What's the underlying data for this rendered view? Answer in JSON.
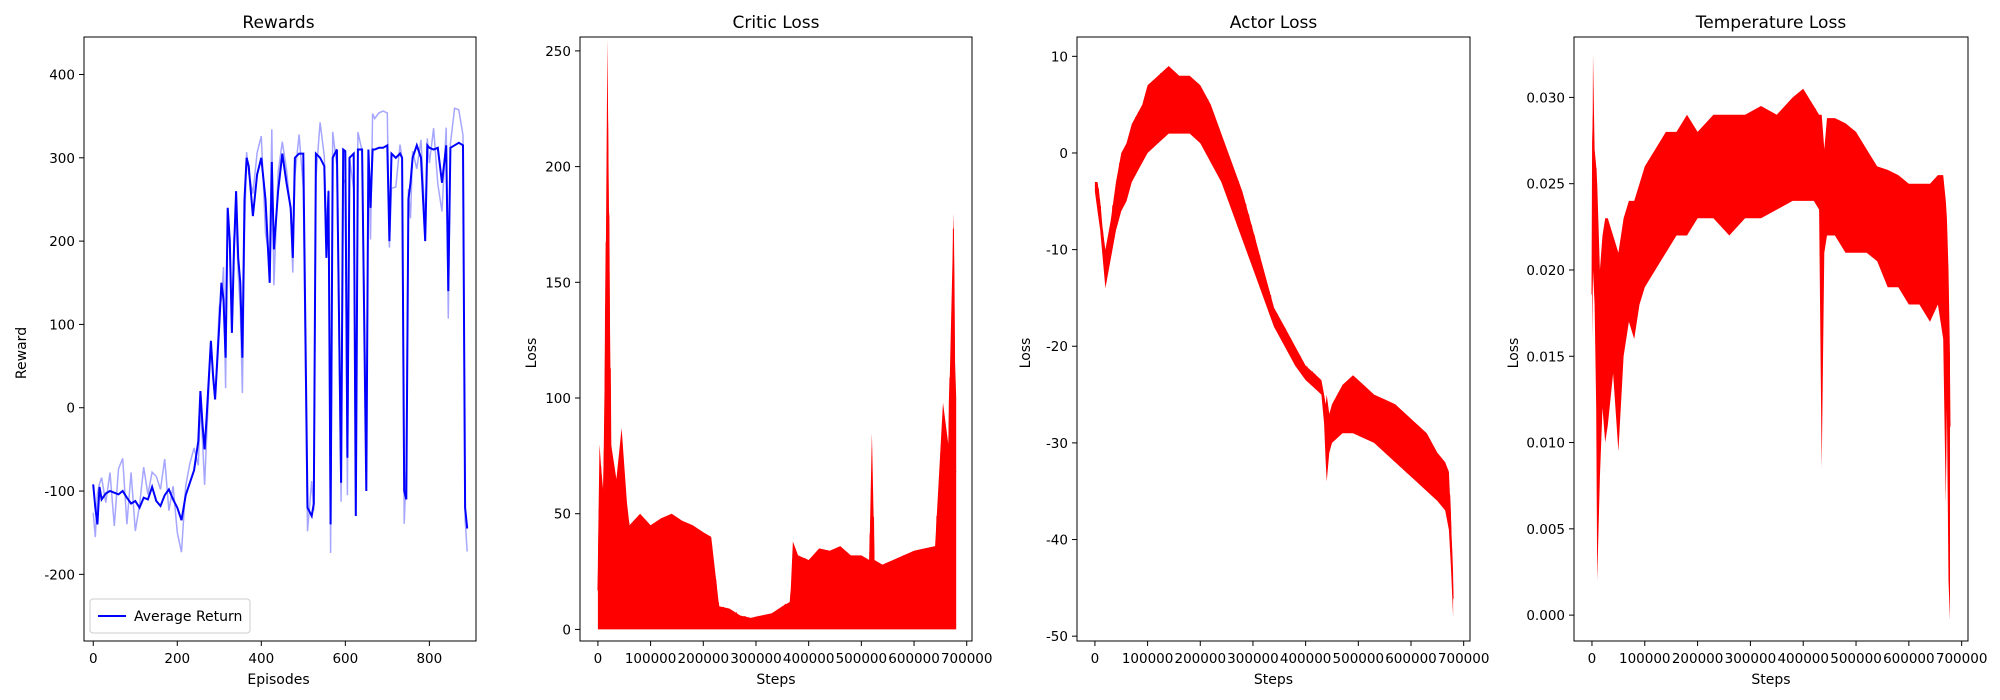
{
  "chart_data": [
    {
      "type": "line",
      "title": "Rewards",
      "xlabel": "Episodes",
      "ylabel": "Reward",
      "xlim": [
        -22,
        911
      ],
      "ylim": [
        -280,
        445
      ],
      "xticks": [
        0,
        200,
        400,
        600,
        800
      ],
      "yticks": [
        -200,
        -100,
        0,
        100,
        200,
        300,
        400
      ],
      "legend": {
        "position": "lower-left",
        "entries": [
          "Average Return"
        ]
      },
      "colors": {
        "line": "#0000ff",
        "band": "#0000ff",
        "band_opacity": 0.35
      },
      "series": [
        {
          "name": "Average Return",
          "x": [
            0,
            5,
            10,
            15,
            20,
            30,
            40,
            50,
            60,
            70,
            80,
            90,
            100,
            110,
            120,
            130,
            140,
            150,
            160,
            170,
            180,
            190,
            200,
            210,
            220,
            230,
            240,
            250,
            255,
            260,
            265,
            270,
            280,
            285,
            290,
            300,
            305,
            310,
            315,
            320,
            325,
            330,
            335,
            340,
            345,
            350,
            355,
            360,
            365,
            370,
            380,
            390,
            400,
            410,
            420,
            425,
            430,
            440,
            450,
            460,
            470,
            475,
            480,
            490,
            500,
            510,
            520,
            525,
            530,
            540,
            550,
            555,
            560,
            565,
            570,
            580,
            590,
            595,
            600,
            605,
            610,
            620,
            625,
            630,
            640,
            650,
            655,
            660,
            665,
            670,
            680,
            690,
            700,
            705,
            710,
            720,
            730,
            735,
            740,
            745,
            750,
            755,
            760,
            770,
            780,
            790,
            795,
            800,
            810,
            820,
            830,
            840,
            845,
            850,
            860,
            870,
            880,
            885,
            890
          ],
          "y": [
            -92,
            -120,
            -140,
            -95,
            -110,
            -103,
            -100,
            -102,
            -104,
            -100,
            -108,
            -115,
            -112,
            -120,
            -108,
            -110,
            -95,
            -112,
            -118,
            -105,
            -98,
            -110,
            -120,
            -135,
            -105,
            -90,
            -75,
            -40,
            20,
            -20,
            -50,
            -10,
            80,
            40,
            10,
            100,
            150,
            130,
            60,
            240,
            200,
            90,
            190,
            260,
            180,
            150,
            60,
            250,
            300,
            290,
            230,
            280,
            300,
            250,
            150,
            295,
            190,
            260,
            305,
            270,
            240,
            180,
            300,
            305,
            305,
            -120,
            -130,
            -115,
            305,
            300,
            290,
            180,
            260,
            -140,
            300,
            310,
            -90,
            310,
            308,
            -60,
            300,
            305,
            -130,
            310,
            310,
            -100,
            310,
            240,
            310,
            310,
            312,
            312,
            315,
            200,
            305,
            300,
            305,
            300,
            -100,
            -110,
            250,
            270,
            300,
            315,
            300,
            200,
            315,
            312,
            310,
            312,
            270,
            315,
            140,
            312,
            315,
            318,
            315,
            -120,
            -145
          ]
        }
      ]
    },
    {
      "type": "line",
      "title": "Critic Loss",
      "xlabel": "Steps",
      "ylabel": "Loss",
      "xlim": [
        -34000,
        710000
      ],
      "ylim": [
        -5,
        256
      ],
      "xticks": [
        0,
        100000,
        200000,
        300000,
        400000,
        500000,
        600000,
        700000
      ],
      "yticks": [
        0,
        50,
        100,
        150,
        200,
        250
      ],
      "colors": {
        "line": "#ff0000"
      },
      "envelope": {
        "x": [
          0,
          3000,
          6000,
          10000,
          14000,
          18000,
          25000,
          35000,
          45000,
          55000,
          60000,
          80000,
          100000,
          120000,
          140000,
          160000,
          180000,
          200000,
          215000,
          230000,
          250000,
          270000,
          290000,
          310000,
          330000,
          350000,
          365000,
          370000,
          380000,
          400000,
          420000,
          440000,
          460000,
          480000,
          500000,
          515000,
          520000,
          525000,
          540000,
          560000,
          580000,
          600000,
          620000,
          640000,
          655000,
          665000,
          670000,
          675000,
          678000,
          680000
        ],
        "upper": [
          30,
          80,
          70,
          60,
          130,
          255,
          80,
          65,
          87,
          55,
          45,
          50,
          45,
          48,
          50,
          47,
          45,
          42,
          40,
          10,
          9,
          6,
          5,
          6,
          7,
          10,
          12,
          38,
          32,
          30,
          35,
          34,
          36,
          32,
          32,
          30,
          85,
          30,
          28,
          30,
          32,
          34,
          35,
          36,
          98,
          80,
          130,
          180,
          115,
          100
        ],
        "lower": [
          0,
          0,
          0,
          0,
          0,
          0,
          0,
          0,
          0,
          0,
          0,
          0,
          0,
          0,
          0,
          0,
          0,
          0,
          0,
          0,
          0,
          0,
          0,
          0,
          0,
          0,
          0,
          0,
          0,
          0,
          0,
          0,
          0,
          0,
          0,
          0,
          0,
          0,
          0,
          0,
          0,
          0,
          0,
          0,
          0,
          0,
          0,
          0,
          0,
          0
        ]
      }
    },
    {
      "type": "line",
      "title": "Actor Loss",
      "xlabel": "Steps",
      "ylabel": "Loss",
      "xlim": [
        -34000,
        712000
      ],
      "ylim": [
        -50.5,
        12
      ],
      "xticks": [
        0,
        100000,
        200000,
        300000,
        400000,
        500000,
        600000,
        700000
      ],
      "yticks": [
        -50,
        -40,
        -30,
        -20,
        -10,
        0,
        10
      ],
      "colors": {
        "line": "#ff0000"
      },
      "envelope": {
        "x": [
          0,
          5000,
          10000,
          15000,
          20000,
          30000,
          40000,
          50000,
          60000,
          70000,
          80000,
          90000,
          100000,
          120000,
          140000,
          160000,
          180000,
          200000,
          220000,
          240000,
          260000,
          280000,
          300000,
          320000,
          340000,
          360000,
          380000,
          400000,
          420000,
          430000,
          435000,
          438000,
          440000,
          445000,
          450000,
          470000,
          490000,
          510000,
          530000,
          550000,
          570000,
          590000,
          610000,
          630000,
          650000,
          665000,
          672000,
          676000,
          680000
        ],
        "upper": [
          -3,
          -3,
          -5,
          -8,
          -10,
          -7,
          -3,
          0,
          1,
          3,
          4,
          5,
          7,
          8,
          9,
          8,
          8,
          7,
          5,
          2,
          -1,
          -4,
          -8,
          -12,
          -16,
          -18,
          -20,
          -22,
          -23,
          -23.5,
          -25,
          -26,
          -25,
          -27,
          -26,
          -24,
          -23,
          -24,
          -25,
          -25.5,
          -26,
          -27,
          -28,
          -29,
          -31,
          -32,
          -33,
          -38,
          -45
        ],
        "lower": [
          -4,
          -6,
          -8,
          -11,
          -14,
          -11,
          -8,
          -6,
          -5,
          -3,
          -2,
          -1,
          0,
          1,
          2,
          2,
          2,
          1,
          -1,
          -3,
          -6,
          -9,
          -12,
          -15,
          -18,
          -20,
          -22,
          -23.5,
          -24.5,
          -25,
          -28,
          -32,
          -34,
          -31,
          -30,
          -29,
          -29,
          -29.5,
          -30,
          -31,
          -32,
          -33,
          -34,
          -35,
          -36,
          -37,
          -39,
          -43,
          -48
        ]
      }
    },
    {
      "type": "line",
      "title": "Temperature Loss",
      "xlabel": "Steps",
      "ylabel": "Loss",
      "xlim": [
        -34000,
        712000
      ],
      "ylim": [
        -0.0015,
        0.0335
      ],
      "xticks": [
        0,
        100000,
        200000,
        300000,
        400000,
        500000,
        600000,
        700000
      ],
      "yticks": [
        0.0,
        0.005,
        0.01,
        0.015,
        0.02,
        0.025,
        0.03
      ],
      "colors": {
        "line": "#ff0000"
      },
      "envelope": {
        "x": [
          0,
          2000,
          5000,
          8000,
          10000,
          15000,
          20000,
          25000,
          30000,
          40000,
          50000,
          60000,
          70000,
          80000,
          90000,
          100000,
          120000,
          140000,
          160000,
          180000,
          200000,
          230000,
          260000,
          290000,
          320000,
          350000,
          380000,
          400000,
          420000,
          430000,
          435000,
          440000,
          445000,
          460000,
          480000,
          500000,
          520000,
          540000,
          560000,
          580000,
          600000,
          620000,
          640000,
          655000,
          665000,
          670000,
          672000,
          675000,
          678000
        ],
        "upper": [
          0.02,
          0.0325,
          0.027,
          0.026,
          0.025,
          0.02,
          0.022,
          0.023,
          0.023,
          0.022,
          0.021,
          0.023,
          0.024,
          0.024,
          0.025,
          0.026,
          0.027,
          0.028,
          0.028,
          0.029,
          0.028,
          0.029,
          0.029,
          0.029,
          0.0295,
          0.029,
          0.03,
          0.0305,
          0.0295,
          0.029,
          0.029,
          0.027,
          0.0288,
          0.0288,
          0.0285,
          0.028,
          0.027,
          0.026,
          0.0258,
          0.0255,
          0.025,
          0.025,
          0.025,
          0.0255,
          0.0255,
          0.024,
          0.023,
          0.02,
          0.015
        ],
        "lower": [
          0.016,
          0.02,
          0.018,
          0.012,
          0.002,
          0.008,
          0.012,
          0.01,
          0.011,
          0.014,
          0.0095,
          0.015,
          0.017,
          0.016,
          0.018,
          0.019,
          0.02,
          0.021,
          0.022,
          0.022,
          0.023,
          0.023,
          0.022,
          0.023,
          0.023,
          0.0235,
          0.024,
          0.024,
          0.024,
          0.0235,
          0.0085,
          0.021,
          0.022,
          0.022,
          0.021,
          0.021,
          0.021,
          0.0205,
          0.019,
          0.019,
          0.018,
          0.018,
          0.017,
          0.018,
          0.016,
          0.0065,
          0.012,
          0.002,
          -0.0003
        ]
      }
    }
  ]
}
